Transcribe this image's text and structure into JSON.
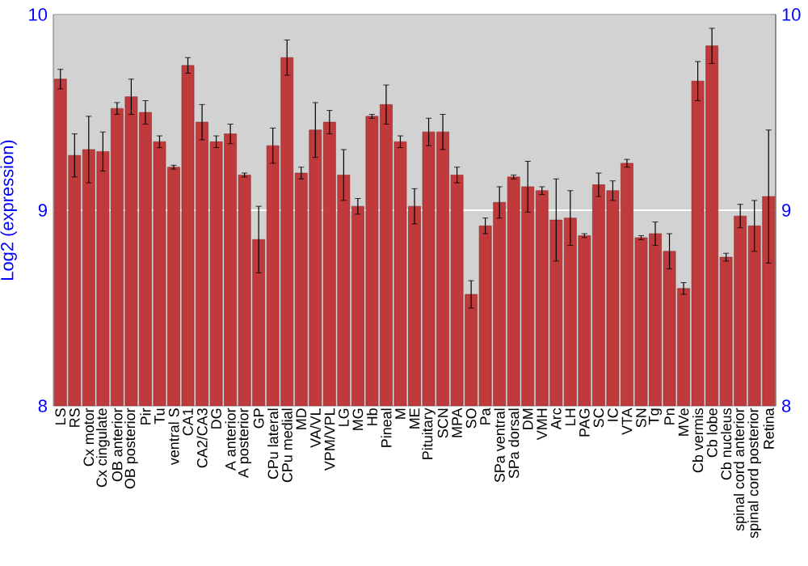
{
  "chart_data": {
    "type": "bar",
    "ylabel": "Log2 (expression)",
    "categories": [
      "LS",
      "RS",
      "Cx motor",
      "Cx cingulate",
      "OB anterior",
      "OB posterior",
      "Pir",
      "Tu",
      "ventral S",
      "CA1",
      "CA2/CA3",
      "DG",
      "A anterior",
      "A posterior",
      "GP",
      "CPu lateral",
      "CPu medial",
      "MD",
      "VA/VL",
      "VPM/VPL",
      "LG",
      "MG",
      "Hb",
      "Pineal",
      "M",
      "ME",
      "Pituitary",
      "SCN",
      "MPA",
      "SO",
      "Pa",
      "SPa ventral",
      "SPa dorsal",
      "DM",
      "VMH",
      "Arc",
      "LH",
      "PAG",
      "SC",
      "IC",
      "VTA",
      "SN",
      "Tg",
      "Pn",
      "MVe",
      "Cb vermis",
      "Cb lobe",
      "Cb nucleus",
      "spinal cord anterior",
      "spinal cord posterior",
      "Retina"
    ],
    "values": [
      9.67,
      9.28,
      9.31,
      9.3,
      9.52,
      9.58,
      9.5,
      9.35,
      9.22,
      9.74,
      9.45,
      9.35,
      9.39,
      9.18,
      8.85,
      9.33,
      9.78,
      9.19,
      9.41,
      9.45,
      9.18,
      9.02,
      9.48,
      9.54,
      9.35,
      9.02,
      9.4,
      9.4,
      9.18,
      8.57,
      8.92,
      9.04,
      9.17,
      9.12,
      9.1,
      8.95,
      8.96,
      8.87,
      9.13,
      9.1,
      9.24,
      8.86,
      8.88,
      8.79,
      8.6,
      9.66,
      9.84,
      8.76,
      8.97,
      8.92,
      9.07
    ],
    "errors": [
      0.05,
      0.11,
      0.17,
      0.1,
      0.03,
      0.09,
      0.06,
      0.03,
      0.01,
      0.04,
      0.09,
      0.03,
      0.05,
      0.01,
      0.17,
      0.09,
      0.09,
      0.03,
      0.14,
      0.06,
      0.13,
      0.04,
      0.01,
      0.1,
      0.03,
      0.09,
      0.07,
      0.09,
      0.04,
      0.07,
      0.04,
      0.08,
      0.01,
      0.13,
      0.02,
      0.21,
      0.14,
      0.01,
      0.06,
      0.05,
      0.02,
      0.01,
      0.06,
      0.09,
      0.03,
      0.1,
      0.09,
      0.02,
      0.06,
      0.13,
      0.34
    ],
    "color": "#c0393b",
    "ylim": [
      8,
      10
    ],
    "yticks": [
      8,
      9,
      10
    ],
    "y2lim": [
      8,
      10
    ],
    "y2ticks": [
      8,
      9,
      10
    ],
    "grid": "y"
  }
}
